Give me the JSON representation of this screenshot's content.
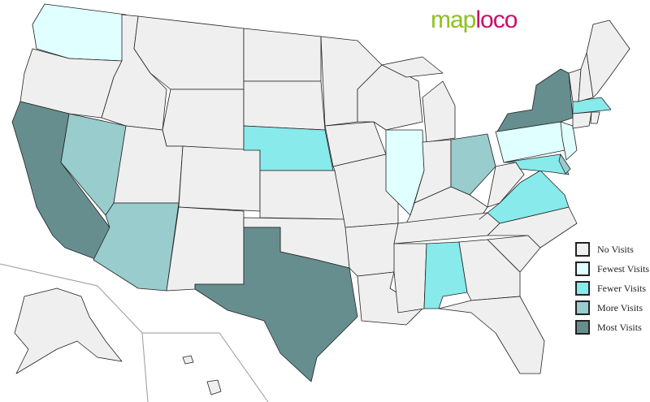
{
  "logo": {
    "part1": "map",
    "part2": "loco"
  },
  "legend": [
    {
      "label": "No Visits",
      "level": "none",
      "color": "#efefef"
    },
    {
      "label": "Fewest Visits",
      "level": "fewest",
      "color": "#e0ffff"
    },
    {
      "label": "Fewer Visits",
      "level": "fewer",
      "color": "#88eaea"
    },
    {
      "label": "More Visits",
      "level": "more",
      "color": "#99cccc"
    },
    {
      "label": "Most Visits",
      "level": "most",
      "color": "#668e8e"
    }
  ],
  "states": {
    "WA": "fewest",
    "NV": "more",
    "AZ": "more",
    "CA": "most",
    "TX": "most",
    "NE": "fewer",
    "IL": "fewest",
    "OH": "more",
    "VA": "fewer",
    "AL": "fewer",
    "NY": "most",
    "PA": "fewest",
    "NJ": "fewest",
    "MA": "fewer",
    "DE": "more",
    "MD": "fewer"
  }
}
